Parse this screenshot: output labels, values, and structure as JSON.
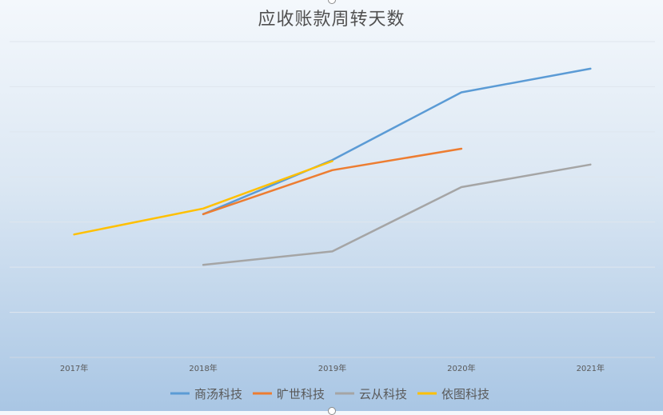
{
  "chart_data": {
    "type": "line",
    "title": "应收账款周转天数",
    "xlabel": "",
    "ylabel": "",
    "categories": [
      "2017年",
      "2018年",
      "2019年",
      "2020年",
      "2021年"
    ],
    "ylim": [
      0,
      140
    ],
    "grid": true,
    "legend_position": "bottom",
    "series": [
      {
        "name": "商汤科技",
        "color": "#5b9bd5",
        "values": [
          null,
          63.5,
          87.5,
          117.5,
          128
        ]
      },
      {
        "name": "旷世科技",
        "color": "#ed7d31",
        "values": [
          null,
          63.5,
          83,
          92.5,
          null
        ]
      },
      {
        "name": "云从科技",
        "color": "#a5a5a5",
        "values": [
          null,
          41,
          47,
          75.5,
          85.5
        ]
      },
      {
        "name": "依图科技",
        "color": "#ffc000",
        "values": [
          54.5,
          66,
          87,
          null,
          null
        ]
      }
    ]
  }
}
